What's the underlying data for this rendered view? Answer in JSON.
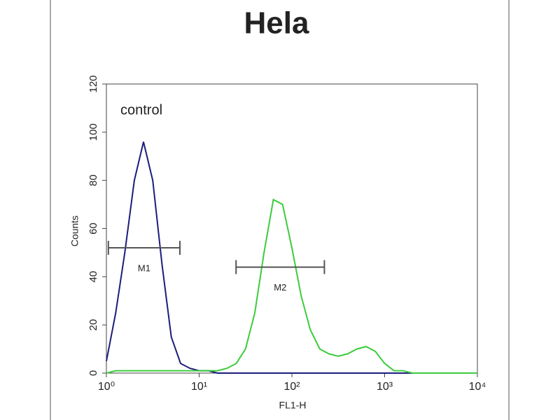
{
  "chart_data": {
    "type": "line",
    "title": "Hela",
    "xlabel": "FL1-H",
    "ylabel": "Counts",
    "annotation": "control",
    "xscale": "log",
    "x": [
      1,
      1.26,
      1.58,
      2,
      2.51,
      3.16,
      3.98,
      5.01,
      6.31,
      7.94,
      10,
      12.6,
      15.8,
      20,
      25.1,
      31.6,
      39.8,
      50.1,
      63.1,
      79.4,
      100,
      126,
      158,
      200,
      251,
      316,
      398,
      501,
      631,
      794,
      1000,
      1260,
      1580,
      2000,
      2510,
      3160,
      3980,
      5010,
      6310,
      7940,
      10000
    ],
    "series": [
      {
        "color": "#1c1c7c",
        "values": [
          5,
          25,
          50,
          80,
          96,
          80,
          45,
          15,
          4,
          2,
          1,
          1,
          0,
          0,
          0,
          0,
          0,
          0,
          0,
          0,
          0,
          0,
          0,
          0,
          0,
          0,
          0,
          0,
          0,
          0,
          0,
          0,
          0,
          0,
          0,
          0,
          0,
          0,
          0,
          0,
          0
        ]
      },
      {
        "color": "#3ccc3c",
        "values": [
          0,
          1,
          1,
          1,
          1,
          1,
          1,
          1,
          1,
          1,
          1,
          1,
          1,
          2,
          4,
          10,
          25,
          50,
          72,
          70,
          52,
          32,
          18,
          10,
          8,
          7,
          8,
          10,
          11,
          9,
          4,
          1,
          1,
          0,
          0,
          0,
          0,
          0,
          0,
          0,
          0
        ]
      }
    ],
    "gates": [
      {
        "label": "M1",
        "x": [
          1.05,
          6.2
        ],
        "y": 52
      },
      {
        "label": "M2",
        "x": [
          25,
          224
        ],
        "y": 44
      }
    ],
    "xlim": [
      1,
      10000
    ],
    "xticks": [
      {
        "value": 1,
        "label": "10⁰"
      },
      {
        "value": 10,
        "label": "10¹"
      },
      {
        "value": 100,
        "label": "10²"
      },
      {
        "value": 1000,
        "label": "10³"
      },
      {
        "value": 10000,
        "label": "10⁴"
      }
    ],
    "ylim": [
      0,
      120
    ],
    "yticks": [
      0,
      20,
      40,
      60,
      80,
      100,
      120
    ]
  }
}
